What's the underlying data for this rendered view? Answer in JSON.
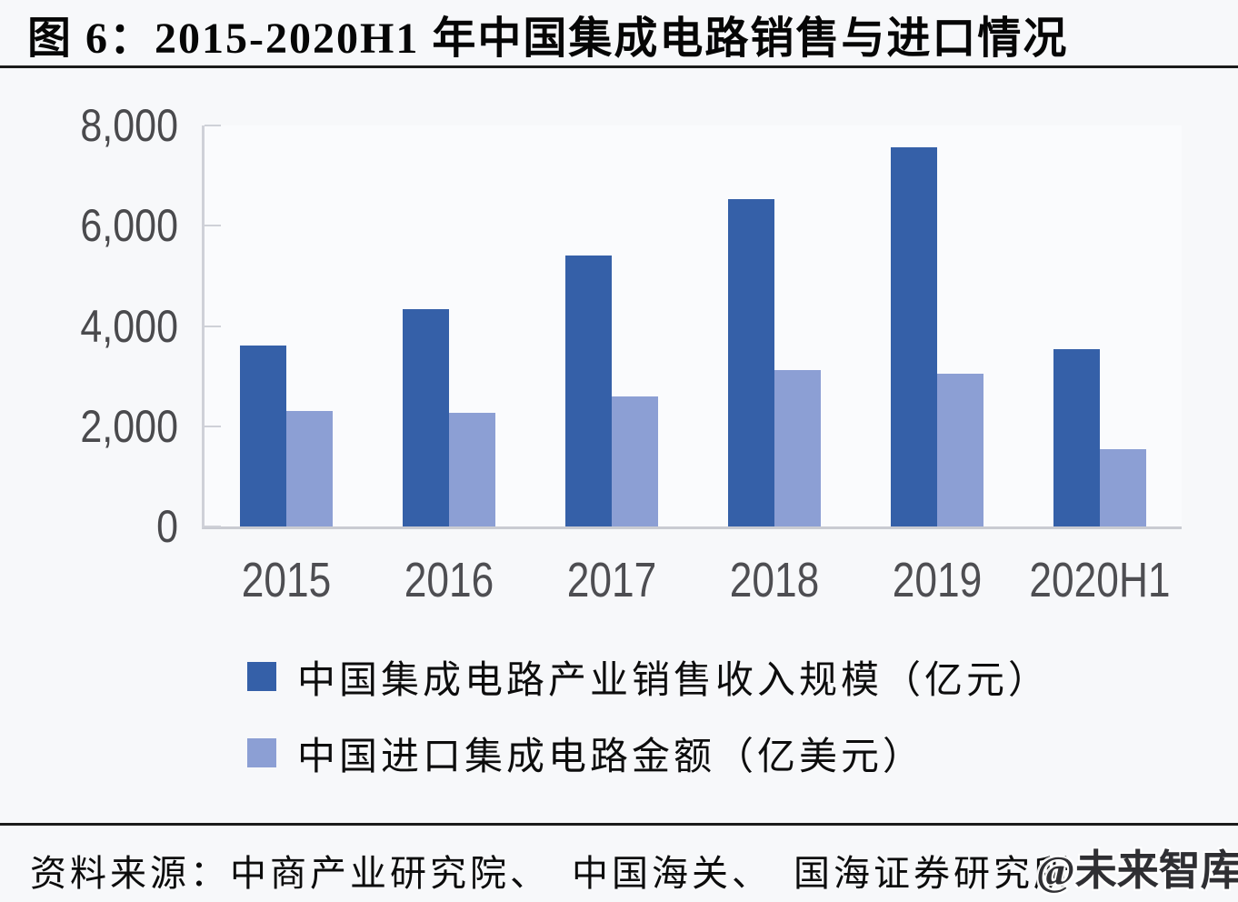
{
  "title": "图 6：2015-2020H1 年中国集成电路销售与进口情况",
  "chart_data": {
    "type": "bar",
    "categories": [
      "2015",
      "2016",
      "2017",
      "2018",
      "2019",
      "2020H1"
    ],
    "series": [
      {
        "name": "中国集成电路产业销售收入规模（亿元）",
        "color": "#3560a8",
        "values": [
          3610,
          4336,
          5411,
          6532,
          7562,
          3539
        ]
      },
      {
        "name": "中国进口集成电路金额（亿美元）",
        "color": "#8c9fd4",
        "values": [
          2307,
          2271,
          2601,
          3121,
          3056,
          1546
        ]
      }
    ],
    "ylim": [
      0,
      8000
    ],
    "yticks": [
      0,
      2000,
      4000,
      6000,
      8000
    ],
    "ytick_labels": [
      "0",
      "2,000",
      "4,000",
      "6,000",
      "8,000"
    ],
    "xlabel": "",
    "ylabel": "",
    "grid": false,
    "legend_position": "bottom"
  },
  "source": {
    "label": "资料来源：中商产业研究院、　中国海关、　国海证券研究所",
    "watermark": "@未来智库"
  },
  "colors": {
    "rule": "#1b1b1b",
    "axis": "#cfd1d8",
    "tick_text": "#4a4a4d",
    "background": "#f7f8fa"
  }
}
